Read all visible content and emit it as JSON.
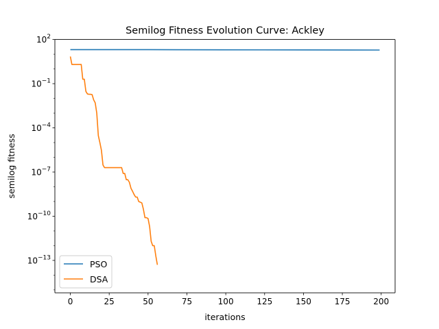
{
  "chart_data": {
    "type": "line",
    "title": "Semilog Fitness Evolution Curve: Ackley",
    "xlabel": "iterations",
    "ylabel": "semilog fitness",
    "yscale": "log",
    "xlim": [
      -9.95,
      208.95
    ],
    "ylim_log10": [
      -15.2,
      2.0
    ],
    "xticks": [
      0,
      25,
      50,
      75,
      100,
      125,
      150,
      175,
      200
    ],
    "yticks": [
      {
        "base": "10",
        "exp": "2",
        "log10": 2
      },
      {
        "base": "10",
        "exp": "−1",
        "log10": -1
      },
      {
        "base": "10",
        "exp": "−4",
        "log10": -4
      },
      {
        "base": "10",
        "exp": "−7",
        "log10": -7
      },
      {
        "base": "10",
        "exp": "−10",
        "log10": -10
      },
      {
        "base": "10",
        "exp": "−13",
        "log10": -13
      }
    ],
    "grid": false,
    "legend_position": "lower-left",
    "series": [
      {
        "name": "PSO",
        "color": "#1f77b4",
        "x": [
          0,
          50,
          100,
          150,
          199
        ],
        "y": [
          20.5,
          20.3,
          19.9,
          19.5,
          19.2
        ]
      },
      {
        "name": "DSA",
        "color": "#ff7f0e",
        "x": [
          0,
          1,
          2,
          3,
          4,
          5,
          6,
          7,
          8,
          9,
          10,
          11,
          12,
          13,
          14,
          15,
          16,
          17,
          18,
          19,
          20,
          21,
          22,
          23,
          24,
          25,
          26,
          27,
          28,
          29,
          30,
          31,
          32,
          33,
          34,
          35,
          36,
          37,
          38,
          39,
          40,
          41,
          42,
          43,
          44,
          45,
          46,
          47,
          48,
          49,
          50,
          51,
          52,
          53,
          54,
          55,
          56
        ],
        "y": [
          7,
          2,
          2,
          2,
          2,
          2,
          2,
          2,
          0.2,
          0.2,
          0.03,
          0.02,
          0.019,
          0.019,
          0.018,
          0.008,
          0.005,
          0.001,
          3e-05,
          1e-05,
          3e-06,
          3e-07,
          2e-07,
          2e-07,
          2e-07,
          2e-07,
          2e-07,
          2e-07,
          2e-07,
          2e-07,
          2e-07,
          2e-07,
          2e-07,
          2e-07,
          8e-08,
          8e-08,
          3e-08,
          3e-08,
          2e-08,
          8e-09,
          5e-09,
          3e-09,
          2e-09,
          2e-09,
          1e-09,
          9e-10,
          8e-10,
          3e-10,
          8e-11,
          8e-11,
          7e-11,
          2e-11,
          2e-12,
          1e-12,
          1e-12,
          2e-13,
          5e-14
        ]
      }
    ]
  }
}
